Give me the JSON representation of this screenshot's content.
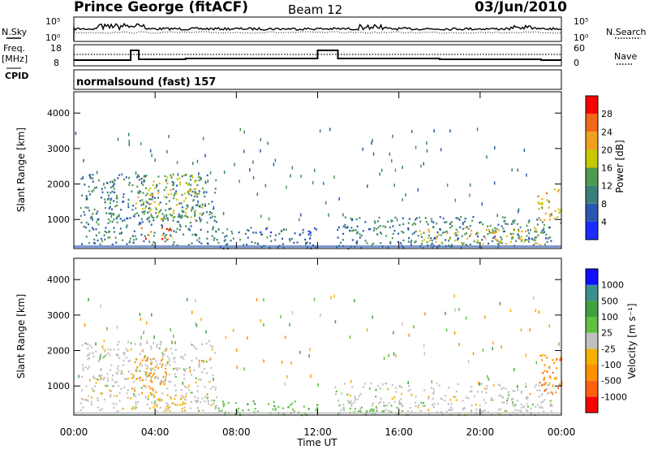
{
  "header": {
    "station": "Prince George (fitACF)",
    "beam": "Beam 12",
    "date": "03/Jun/2010"
  },
  "noise_panel": {
    "left_label": "N.Sky",
    "right_label": "N.Search",
    "tick_top": "10^5",
    "tick_bottom": "10^0",
    "right_tick_top": "10^5",
    "right_tick_bottom": "10^0"
  },
  "freq_panel": {
    "left_label_1": "Freq.",
    "left_label_2": "[MHz]",
    "tick_top": "18",
    "tick_bottom": "8",
    "right_label": "Nave",
    "right_tick_top": "60",
    "right_tick_bottom": "0"
  },
  "cpid": {
    "label": "CPID",
    "mode": "normalsound (fast) 157"
  },
  "colors": {
    "power": [
      "#1a2cff",
      "#2a55b0",
      "#3a7f7a",
      "#4e9a4e",
      "#c8c800",
      "#f0a020",
      "#f06818",
      "#ff0000"
    ],
    "velocity": [
      "#ff0000",
      "#ff6010",
      "#ff9000",
      "#f5b000",
      "#c0c0c0",
      "#c0c0c0",
      "#60c040",
      "#40a040",
      "#3a8f8f",
      "#2a5ab8",
      "#1010ff"
    ]
  },
  "chart_data": [
    {
      "type": "heatmap",
      "title": "",
      "ylabel": "Slant Range [km]",
      "xlabel": "",
      "ylim": [
        180,
        4600
      ],
      "xlim": [
        0,
        24
      ],
      "yticks": [
        "1000",
        "2000",
        "3000",
        "4000"
      ],
      "colorbar": {
        "label": "Power [dB]",
        "ticks": [
          "4",
          "8",
          "12",
          "16",
          "20",
          "24",
          "28"
        ],
        "range": [
          0,
          32
        ]
      },
      "regions": [
        {
          "t0": 0.3,
          "t1": 7.0,
          "r0": 300,
          "r1": 2300,
          "level": 10
        },
        {
          "t0": 3.0,
          "t1": 6.3,
          "r0": 1000,
          "r1": 2300,
          "level": 16
        },
        {
          "t0": 3.3,
          "t1": 4.8,
          "r0": 450,
          "r1": 800,
          "level": 26
        },
        {
          "t0": 7.0,
          "t1": 12.0,
          "r0": 200,
          "r1": 800,
          "level": 8
        },
        {
          "t0": 12.8,
          "t1": 23.5,
          "r0": 200,
          "r1": 1100,
          "level": 10
        },
        {
          "t0": 16.8,
          "t1": 23.0,
          "r0": 300,
          "r1": 800,
          "level": 18
        },
        {
          "t0": 22.8,
          "t1": 24.0,
          "r0": 900,
          "r1": 1900,
          "level": 20
        }
      ]
    },
    {
      "type": "heatmap",
      "title": "",
      "ylabel": "Slant Range [km]",
      "xlabel": "Time UT",
      "ylim": [
        180,
        4600
      ],
      "xlim": [
        0,
        24
      ],
      "yticks": [
        "1000",
        "2000",
        "3000",
        "4000"
      ],
      "xticks": [
        "00:00",
        "04:00",
        "08:00",
        "12:00",
        "16:00",
        "20:00",
        "00:00"
      ],
      "colorbar": {
        "label": "Velocity [m s^-1]",
        "ticks": [
          "1000",
          "500",
          "100",
          "25",
          "-25",
          "-100",
          "-500",
          "-1000"
        ],
        "range": [
          -1200,
          1200
        ]
      },
      "regions": [
        {
          "t0": 0.3,
          "t1": 7.0,
          "r0": 300,
          "r1": 2300,
          "level": 0
        },
        {
          "t0": 2.8,
          "t1": 4.5,
          "r0": 800,
          "r1": 1800,
          "level": -300
        },
        {
          "t0": 3.5,
          "t1": 5.5,
          "r0": 300,
          "r1": 800,
          "level": -60
        },
        {
          "t0": 7.0,
          "t1": 12.0,
          "r0": 200,
          "r1": 600,
          "level": 80
        },
        {
          "t0": 12.8,
          "t1": 23.5,
          "r0": 200,
          "r1": 1100,
          "level": 0
        },
        {
          "t0": 12.8,
          "t1": 16.0,
          "r0": 200,
          "r1": 500,
          "level": 60
        },
        {
          "t0": 22.8,
          "t1": 24.0,
          "r0": 800,
          "r1": 1900,
          "level": -400
        }
      ]
    }
  ]
}
